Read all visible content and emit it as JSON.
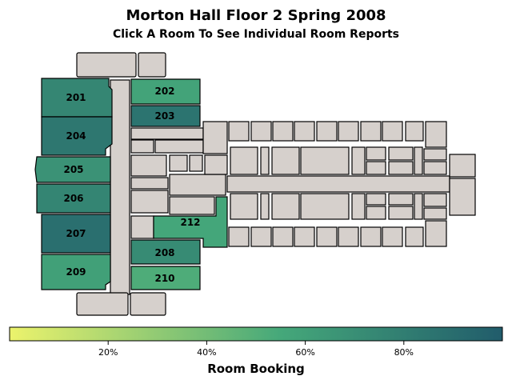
{
  "title": "Morton Hall Floor 2 Spring 2008",
  "subtitle": "Click A Room To See Individual Room Reports",
  "legend": {
    "title": "Room Booking",
    "ticks": [
      {
        "value": 0.2,
        "label": "20%"
      },
      {
        "value": 0.4,
        "label": "40%"
      },
      {
        "value": 0.6,
        "label": "60%"
      },
      {
        "value": 0.8,
        "label": "80%"
      }
    ],
    "colors": {
      "low": "#ecf36c",
      "mid": "#45a87a",
      "high": "#215c6b"
    }
  },
  "rooms": [
    {
      "id": "201",
      "label": "201",
      "booking": 0.75
    },
    {
      "id": "202",
      "label": "202",
      "booking": 0.58
    },
    {
      "id": "203",
      "label": "203",
      "booking": 0.86
    },
    {
      "id": "204",
      "label": "204",
      "booking": 0.84
    },
    {
      "id": "205",
      "label": "205",
      "booking": 0.68
    },
    {
      "id": "206",
      "label": "206",
      "booking": 0.76
    },
    {
      "id": "207",
      "label": "207",
      "booking": 0.89
    },
    {
      "id": "208",
      "label": "208",
      "booking": 0.72
    },
    {
      "id": "209",
      "label": "209",
      "booking": 0.6
    },
    {
      "id": "210",
      "label": "210",
      "booking": 0.52
    },
    {
      "id": "212",
      "label": "212",
      "booking": 0.56
    }
  ]
}
